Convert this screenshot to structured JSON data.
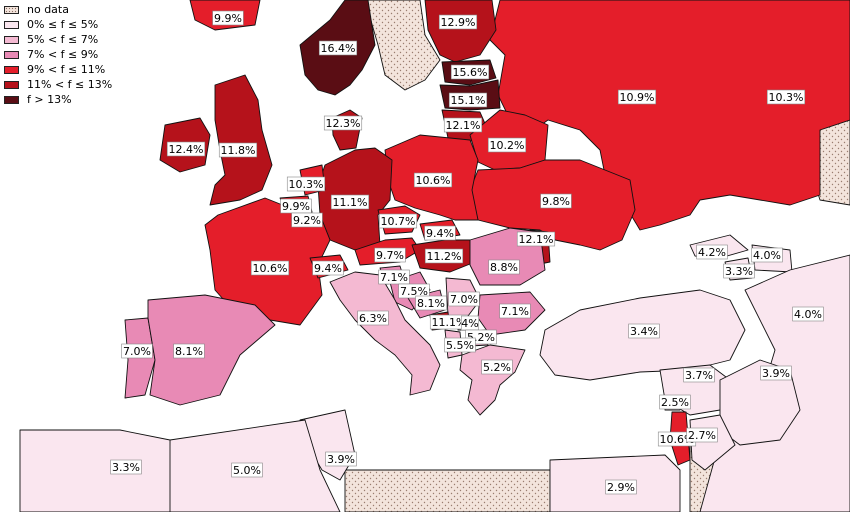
{
  "legend": {
    "items": [
      {
        "label": "no data",
        "color": "nodata"
      },
      {
        "label": "0% ≤ f ≤ 5%",
        "color": "#fae6ef"
      },
      {
        "label": "5% < f ≤ 7%",
        "color": "#f4b9d2"
      },
      {
        "label": "7% < f ≤ 9%",
        "color": "#e88ab5"
      },
      {
        "label": "9% < f ≤ 11%",
        "color": "#e41e2a"
      },
      {
        "label": "11% < f ≤ 13%",
        "color": "#b5121b"
      },
      {
        "label": "f > 13%",
        "color": "#5a0d14"
      }
    ]
  },
  "regions": [
    {
      "name": "russia",
      "value": "10.9%",
      "cls": 4
    },
    {
      "name": "russia-east",
      "value": "10.3%",
      "cls": 4
    },
    {
      "name": "finland",
      "value": "12.9%",
      "cls": 5
    },
    {
      "name": "norway",
      "value": "16.4%",
      "cls": 6
    },
    {
      "name": "estonia",
      "value": "15.6%",
      "cls": 6
    },
    {
      "name": "latvia",
      "value": "15.1%",
      "cls": 6
    },
    {
      "name": "lithuania",
      "value": "12.1%",
      "cls": 5
    },
    {
      "name": "belarus",
      "value": "10.2%",
      "cls": 4
    },
    {
      "name": "ukraine",
      "value": "9.8%",
      "cls": 4
    },
    {
      "name": "poland",
      "value": "10.6%",
      "cls": 4
    },
    {
      "name": "germany",
      "value": "11.1%",
      "cls": 5
    },
    {
      "name": "denmark",
      "value": "12.3%",
      "cls": 5
    },
    {
      "name": "uk",
      "value": "11.8%",
      "cls": 5
    },
    {
      "name": "ireland",
      "value": "12.4%",
      "cls": 5
    },
    {
      "name": "netherlands",
      "value": "10.3%",
      "cls": 4
    },
    {
      "name": "belgium",
      "value": "9.9%",
      "cls": 4
    },
    {
      "name": "luxembourg",
      "value": "9.2%",
      "cls": 4
    },
    {
      "name": "france",
      "value": "10.6%",
      "cls": 4
    },
    {
      "name": "switzerland",
      "value": "9.4%",
      "cls": 4
    },
    {
      "name": "czech",
      "value": "10.7%",
      "cls": 4
    },
    {
      "name": "slovakia",
      "value": "9.4%",
      "cls": 4
    },
    {
      "name": "austria",
      "value": "9.7%",
      "cls": 4
    },
    {
      "name": "hungary",
      "value": "11.2%",
      "cls": 5
    },
    {
      "name": "moldova",
      "value": "12.1%",
      "cls": 5
    },
    {
      "name": "romania",
      "value": "8.8%",
      "cls": 3
    },
    {
      "name": "slovenia",
      "value": "7.1%",
      "cls": 3
    },
    {
      "name": "croatia",
      "value": "7.5%",
      "cls": 3
    },
    {
      "name": "bosnia",
      "value": "8.1%",
      "cls": 3
    },
    {
      "name": "serbia",
      "value": "7.0%",
      "cls": 2
    },
    {
      "name": "bulgaria",
      "value": "7.1%",
      "cls": 3
    },
    {
      "name": "montenegro",
      "value": "11.1%",
      "cls": 5
    },
    {
      "name": "kosovo",
      "value": "4%",
      "cls": 1
    },
    {
      "name": "macedonia",
      "value": "5.2%",
      "cls": 2
    },
    {
      "name": "albania",
      "value": "5.5%",
      "cls": 2
    },
    {
      "name": "greece",
      "value": "5.2%",
      "cls": 2
    },
    {
      "name": "italy",
      "value": "6.3%",
      "cls": 2
    },
    {
      "name": "portugal",
      "value": "7.0%",
      "cls": 3
    },
    {
      "name": "spain",
      "value": "8.1%",
      "cls": 3
    },
    {
      "name": "turkey",
      "value": "3.4%",
      "cls": 1
    },
    {
      "name": "georgia",
      "value": "4.2%",
      "cls": 1
    },
    {
      "name": "armenia",
      "value": "3.3%",
      "cls": 1
    },
    {
      "name": "azerbaijan",
      "value": "4.0%",
      "cls": 1
    },
    {
      "name": "iran",
      "value": "4.0%",
      "cls": 1
    },
    {
      "name": "syria",
      "value": "3.7%",
      "cls": 1
    },
    {
      "name": "iraq",
      "value": "3.9%",
      "cls": 1
    },
    {
      "name": "lebanon",
      "value": "2.5%",
      "cls": 1
    },
    {
      "name": "israel",
      "value": "10.6%",
      "cls": 4
    },
    {
      "name": "jordan",
      "value": "2.7%",
      "cls": 1
    },
    {
      "name": "egypt",
      "value": "2.9%",
      "cls": 1
    },
    {
      "name": "tunisia",
      "value": "3.9%",
      "cls": 1
    },
    {
      "name": "algeria",
      "value": "5.0%",
      "cls": 1
    },
    {
      "name": "morocco",
      "value": "3.3%",
      "cls": 1
    },
    {
      "name": "iceland",
      "value": "9.9%",
      "cls": 4
    }
  ]
}
